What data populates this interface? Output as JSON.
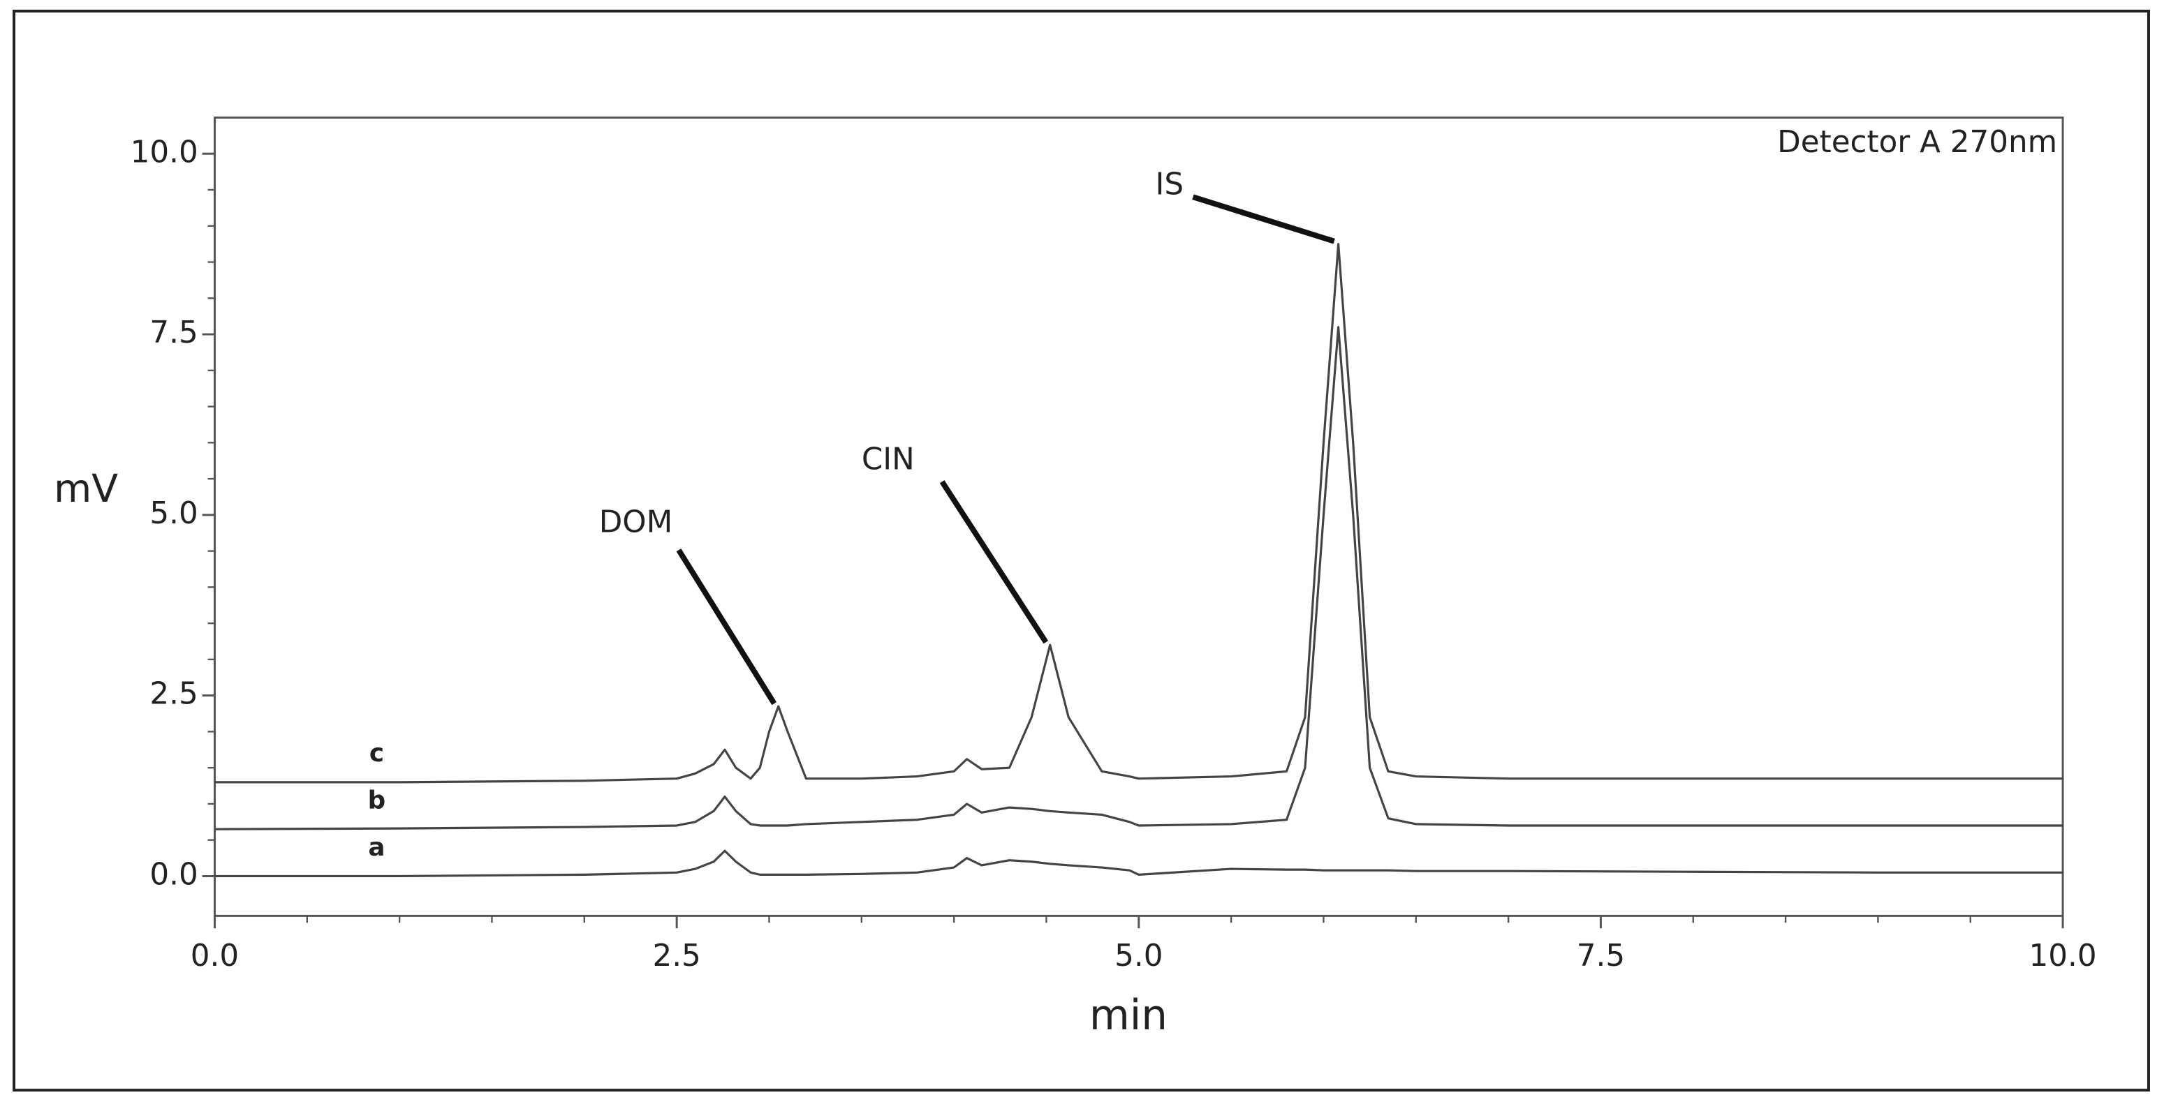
{
  "chart_data": {
    "type": "line",
    "annotation_top_right": "Detector A 270nm",
    "xlabel": "min",
    "ylabel": "mV",
    "xlim": [
      0,
      10
    ],
    "ylim": [
      -0.55,
      10.5
    ],
    "xticks": [
      {
        "value": 0,
        "label": "0.0"
      },
      {
        "value": 2.5,
        "label": "2.5"
      },
      {
        "value": 5,
        "label": "5.0"
      },
      {
        "value": 7.5,
        "label": "7.5"
      },
      {
        "value": 10,
        "label": "10.0"
      }
    ],
    "yticks": [
      {
        "value": 0,
        "label": "0.0"
      },
      {
        "value": 2.5,
        "label": "2.5"
      },
      {
        "value": 5,
        "label": "5.0"
      },
      {
        "value": 7.5,
        "label": "7.5"
      },
      {
        "value": 10,
        "label": "10.0"
      }
    ],
    "xminorticks": [
      0.5,
      1,
      1.5,
      2,
      3,
      3.5,
      4,
      4.5,
      5.5,
      6,
      6.5,
      7,
      8,
      8.5,
      9,
      9.5
    ],
    "yminorticks": [
      0.5,
      1,
      1.5,
      2,
      3,
      3.5,
      4,
      4.5,
      5.5,
      6,
      6.5,
      7,
      8,
      8.5,
      9,
      9.5
    ],
    "x": [
      0,
      1,
      2,
      2.5,
      2.6,
      2.7,
      2.76,
      2.82,
      2.9,
      2.95,
      3.0,
      3.05,
      3.1,
      3.2,
      3.5,
      3.8,
      4.0,
      4.07,
      4.15,
      4.3,
      4.42,
      4.52,
      4.62,
      4.8,
      4.95,
      5.0,
      5.5,
      5.8,
      5.9,
      6.0,
      6.08,
      6.16,
      6.25,
      6.35,
      6.5,
      7,
      8,
      9,
      10
    ],
    "series": [
      {
        "name": "a",
        "color": "#444444",
        "values": [
          0.0,
          0.0,
          0.02,
          0.05,
          0.1,
          0.2,
          0.35,
          0.2,
          0.05,
          0.02,
          0.02,
          0.02,
          0.02,
          0.02,
          0.03,
          0.05,
          0.12,
          0.25,
          0.15,
          0.22,
          0.2,
          0.17,
          0.15,
          0.12,
          0.08,
          0.02,
          0.1,
          0.09,
          0.09,
          0.08,
          0.08,
          0.08,
          0.08,
          0.08,
          0.07,
          0.07,
          0.06,
          0.05,
          0.05
        ]
      },
      {
        "name": "b",
        "color": "#444444",
        "values": [
          0.65,
          0.66,
          0.68,
          0.7,
          0.75,
          0.9,
          1.1,
          0.9,
          0.72,
          0.7,
          0.7,
          0.7,
          0.7,
          0.72,
          0.75,
          0.78,
          0.85,
          1.0,
          0.88,
          0.95,
          0.93,
          0.9,
          0.88,
          0.85,
          0.75,
          0.7,
          0.72,
          0.78,
          1.5,
          5.0,
          7.6,
          5.0,
          1.5,
          0.8,
          0.72,
          0.7,
          0.7,
          0.7,
          0.7
        ]
      },
      {
        "name": "c",
        "color": "#444444",
        "values": [
          1.3,
          1.3,
          1.32,
          1.35,
          1.42,
          1.55,
          1.75,
          1.5,
          1.35,
          1.5,
          2.0,
          2.35,
          2.0,
          1.35,
          1.35,
          1.38,
          1.45,
          1.62,
          1.48,
          1.5,
          2.2,
          3.2,
          2.2,
          1.45,
          1.38,
          1.35,
          1.38,
          1.45,
          2.2,
          6.0,
          8.75,
          6.0,
          2.2,
          1.45,
          1.38,
          1.35,
          1.35,
          1.35,
          1.35
        ]
      }
    ],
    "annotations": [
      {
        "text": "DOM",
        "x": 3.05,
        "y": 2.35
      },
      {
        "text": "CIN",
        "x": 4.52,
        "y": 3.2
      },
      {
        "text": "IS",
        "x": 6.08,
        "y": 8.75
      }
    ]
  }
}
